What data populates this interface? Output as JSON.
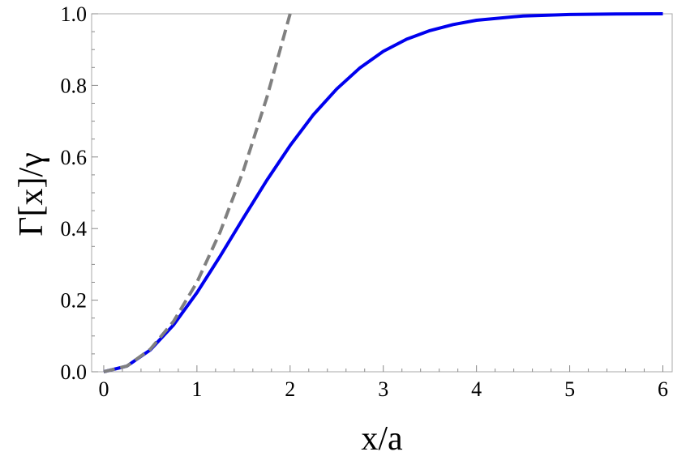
{
  "chart_data": {
    "type": "line",
    "title": "",
    "xlabel": "x/a",
    "ylabel": "Γ[x]/γ",
    "xlim": [
      -0.13,
      6.1
    ],
    "ylim": [
      0,
      1
    ],
    "grid": false,
    "xticks": [
      "0",
      "1",
      "2",
      "3",
      "4",
      "5",
      "6"
    ],
    "yticks": [
      "0.0",
      "0.2",
      "0.4",
      "0.6",
      "0.8",
      "1.0"
    ],
    "series": [
      {
        "style": "solid",
        "color": "#0000ee",
        "x": [
          0,
          0.25,
          0.5,
          0.75,
          1,
          1.25,
          1.5,
          1.75,
          2,
          2.25,
          2.5,
          2.75,
          3,
          3.25,
          3.5,
          3.75,
          4,
          4.5,
          5,
          5.5,
          6
        ],
        "y": [
          0,
          0.016,
          0.061,
          0.131,
          0.221,
          0.323,
          0.43,
          0.535,
          0.632,
          0.718,
          0.79,
          0.849,
          0.895,
          0.929,
          0.953,
          0.97,
          0.982,
          0.994,
          0.998,
          0.9995,
          0.9999
        ]
      },
      {
        "style": "dashed",
        "color": "#808080",
        "x": [
          0,
          0.25,
          0.5,
          0.75,
          1,
          1.25,
          1.5,
          1.75,
          2
        ],
        "y": [
          0,
          0.016,
          0.063,
          0.141,
          0.25,
          0.391,
          0.563,
          0.766,
          1.0
        ]
      }
    ]
  }
}
